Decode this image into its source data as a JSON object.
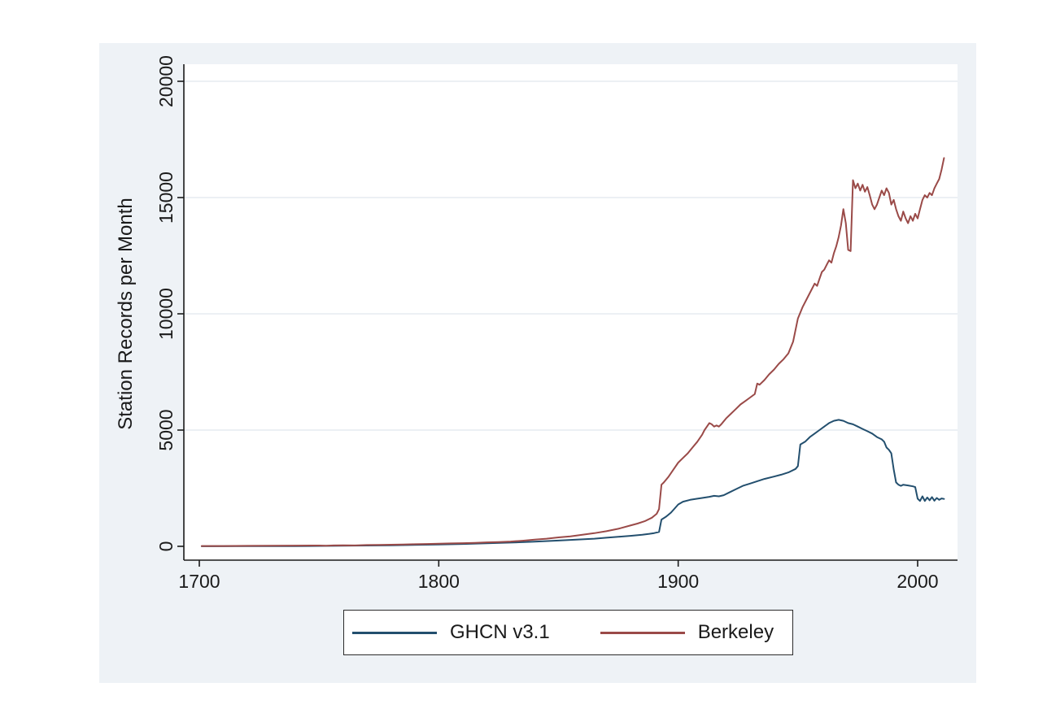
{
  "figure": {
    "background_color": "#eef2f6",
    "plot_background_color": "#ffffff",
    "gridline_color": "#e6ecf0",
    "axis_color": "#1a1a1a",
    "text_color": "#1a1a1a"
  },
  "chart_data": {
    "type": "line",
    "title": "",
    "xlabel": "",
    "ylabel": "Station Records per Month",
    "x_ticks": [
      1700,
      1800,
      1900,
      2000
    ],
    "y_ticks": [
      0,
      5000,
      10000,
      15000,
      20000
    ],
    "xlim": [
      1693,
      2017
    ],
    "ylim": [
      -600,
      20700
    ],
    "grid": true,
    "legend_position": "bottom",
    "series": [
      {
        "name": "GHCN v3.1",
        "color": "#234f6e",
        "points": [
          [
            1701,
            5
          ],
          [
            1720,
            8
          ],
          [
            1740,
            12
          ],
          [
            1760,
            25
          ],
          [
            1780,
            45
          ],
          [
            1800,
            80
          ],
          [
            1810,
            100
          ],
          [
            1820,
            130
          ],
          [
            1830,
            160
          ],
          [
            1840,
            200
          ],
          [
            1850,
            250
          ],
          [
            1855,
            275
          ],
          [
            1860,
            300
          ],
          [
            1865,
            330
          ],
          [
            1870,
            370
          ],
          [
            1875,
            410
          ],
          [
            1880,
            450
          ],
          [
            1885,
            500
          ],
          [
            1888,
            540
          ],
          [
            1890,
            570
          ],
          [
            1892,
            620
          ],
          [
            1893,
            1150
          ],
          [
            1895,
            1280
          ],
          [
            1897,
            1450
          ],
          [
            1900,
            1800
          ],
          [
            1902,
            1920
          ],
          [
            1905,
            2000
          ],
          [
            1908,
            2050
          ],
          [
            1910,
            2080
          ],
          [
            1913,
            2130
          ],
          [
            1915,
            2170
          ],
          [
            1917,
            2150
          ],
          [
            1919,
            2200
          ],
          [
            1921,
            2300
          ],
          [
            1924,
            2450
          ],
          [
            1927,
            2600
          ],
          [
            1930,
            2700
          ],
          [
            1933,
            2800
          ],
          [
            1936,
            2900
          ],
          [
            1940,
            3000
          ],
          [
            1943,
            3080
          ],
          [
            1946,
            3180
          ],
          [
            1949,
            3330
          ],
          [
            1950,
            3450
          ],
          [
            1951,
            4380
          ],
          [
            1953,
            4500
          ],
          [
            1955,
            4700
          ],
          [
            1957,
            4850
          ],
          [
            1959,
            5000
          ],
          [
            1961,
            5150
          ],
          [
            1963,
            5300
          ],
          [
            1965,
            5400
          ],
          [
            1967,
            5440
          ],
          [
            1969,
            5400
          ],
          [
            1971,
            5300
          ],
          [
            1973,
            5250
          ],
          [
            1975,
            5150
          ],
          [
            1977,
            5050
          ],
          [
            1979,
            4950
          ],
          [
            1981,
            4850
          ],
          [
            1983,
            4700
          ],
          [
            1985,
            4600
          ],
          [
            1986,
            4500
          ],
          [
            1987,
            4250
          ],
          [
            1988,
            4150
          ],
          [
            1989,
            4000
          ],
          [
            1990,
            3300
          ],
          [
            1991,
            2750
          ],
          [
            1992,
            2650
          ],
          [
            1993,
            2600
          ],
          [
            1994,
            2650
          ],
          [
            1996,
            2620
          ],
          [
            1998,
            2580
          ],
          [
            1999,
            2550
          ],
          [
            2000,
            2050
          ],
          [
            2001,
            1950
          ],
          [
            2002,
            2150
          ],
          [
            2003,
            1950
          ],
          [
            2004,
            2100
          ],
          [
            2005,
            1980
          ],
          [
            2006,
            2120
          ],
          [
            2007,
            1960
          ],
          [
            2008,
            2080
          ],
          [
            2009,
            2000
          ],
          [
            2010,
            2060
          ],
          [
            2011,
            2040
          ]
        ]
      },
      {
        "name": "Berkeley",
        "color": "#9a4a48",
        "points": [
          [
            1701,
            15
          ],
          [
            1710,
            15
          ],
          [
            1720,
            20
          ],
          [
            1730,
            25
          ],
          [
            1740,
            30
          ],
          [
            1750,
            35
          ],
          [
            1753,
            25
          ],
          [
            1756,
            40
          ],
          [
            1760,
            45
          ],
          [
            1765,
            40
          ],
          [
            1770,
            55
          ],
          [
            1775,
            60
          ],
          [
            1780,
            70
          ],
          [
            1785,
            80
          ],
          [
            1790,
            90
          ],
          [
            1795,
            100
          ],
          [
            1800,
            115
          ],
          [
            1805,
            125
          ],
          [
            1810,
            135
          ],
          [
            1815,
            150
          ],
          [
            1820,
            170
          ],
          [
            1825,
            185
          ],
          [
            1830,
            205
          ],
          [
            1835,
            240
          ],
          [
            1840,
            285
          ],
          [
            1845,
            330
          ],
          [
            1850,
            385
          ],
          [
            1855,
            430
          ],
          [
            1860,
            500
          ],
          [
            1865,
            565
          ],
          [
            1870,
            650
          ],
          [
            1875,
            755
          ],
          [
            1880,
            895
          ],
          [
            1883,
            980
          ],
          [
            1886,
            1080
          ],
          [
            1889,
            1230
          ],
          [
            1891,
            1400
          ],
          [
            1892,
            1600
          ],
          [
            1893,
            2650
          ],
          [
            1894,
            2750
          ],
          [
            1896,
            3000
          ],
          [
            1898,
            3300
          ],
          [
            1900,
            3600
          ],
          [
            1902,
            3800
          ],
          [
            1904,
            4000
          ],
          [
            1906,
            4250
          ],
          [
            1908,
            4500
          ],
          [
            1910,
            4800
          ],
          [
            1911,
            5000
          ],
          [
            1912,
            5150
          ],
          [
            1913,
            5300
          ],
          [
            1914,
            5250
          ],
          [
            1915,
            5150
          ],
          [
            1916,
            5200
          ],
          [
            1917,
            5150
          ],
          [
            1918,
            5250
          ],
          [
            1920,
            5500
          ],
          [
            1922,
            5700
          ],
          [
            1924,
            5900
          ],
          [
            1926,
            6100
          ],
          [
            1928,
            6250
          ],
          [
            1930,
            6400
          ],
          [
            1932,
            6550
          ],
          [
            1933,
            7000
          ],
          [
            1934,
            6950
          ],
          [
            1936,
            7150
          ],
          [
            1938,
            7400
          ],
          [
            1940,
            7600
          ],
          [
            1942,
            7850
          ],
          [
            1944,
            8050
          ],
          [
            1946,
            8300
          ],
          [
            1948,
            8800
          ],
          [
            1950,
            9800
          ],
          [
            1952,
            10300
          ],
          [
            1954,
            10700
          ],
          [
            1956,
            11100
          ],
          [
            1957,
            11300
          ],
          [
            1958,
            11200
          ],
          [
            1959,
            11500
          ],
          [
            1960,
            11800
          ],
          [
            1961,
            11900
          ],
          [
            1962,
            12100
          ],
          [
            1963,
            12300
          ],
          [
            1964,
            12200
          ],
          [
            1965,
            12600
          ],
          [
            1966,
            12900
          ],
          [
            1967,
            13300
          ],
          [
            1968,
            13800
          ],
          [
            1969,
            14500
          ],
          [
            1970,
            13900
          ],
          [
            1971,
            12750
          ],
          [
            1972,
            12700
          ],
          [
            1973,
            15750
          ],
          [
            1974,
            15400
          ],
          [
            1975,
            15600
          ],
          [
            1976,
            15300
          ],
          [
            1977,
            15550
          ],
          [
            1978,
            15250
          ],
          [
            1979,
            15450
          ],
          [
            1980,
            15100
          ],
          [
            1981,
            14700
          ],
          [
            1982,
            14500
          ],
          [
            1983,
            14700
          ],
          [
            1984,
            15000
          ],
          [
            1985,
            15300
          ],
          [
            1986,
            15100
          ],
          [
            1987,
            15400
          ],
          [
            1988,
            15200
          ],
          [
            1989,
            14700
          ],
          [
            1990,
            14900
          ],
          [
            1991,
            14500
          ],
          [
            1992,
            14200
          ],
          [
            1993,
            14000
          ],
          [
            1994,
            14400
          ],
          [
            1995,
            14100
          ],
          [
            1996,
            13900
          ],
          [
            1997,
            14200
          ],
          [
            1998,
            14000
          ],
          [
            1999,
            14300
          ],
          [
            2000,
            14100
          ],
          [
            2001,
            14500
          ],
          [
            2002,
            14900
          ],
          [
            2003,
            15100
          ],
          [
            2004,
            15000
          ],
          [
            2005,
            15200
          ],
          [
            2006,
            15100
          ],
          [
            2007,
            15400
          ],
          [
            2008,
            15600
          ],
          [
            2009,
            15800
          ],
          [
            2010,
            16200
          ],
          [
            2011,
            16700
          ]
        ]
      }
    ]
  }
}
